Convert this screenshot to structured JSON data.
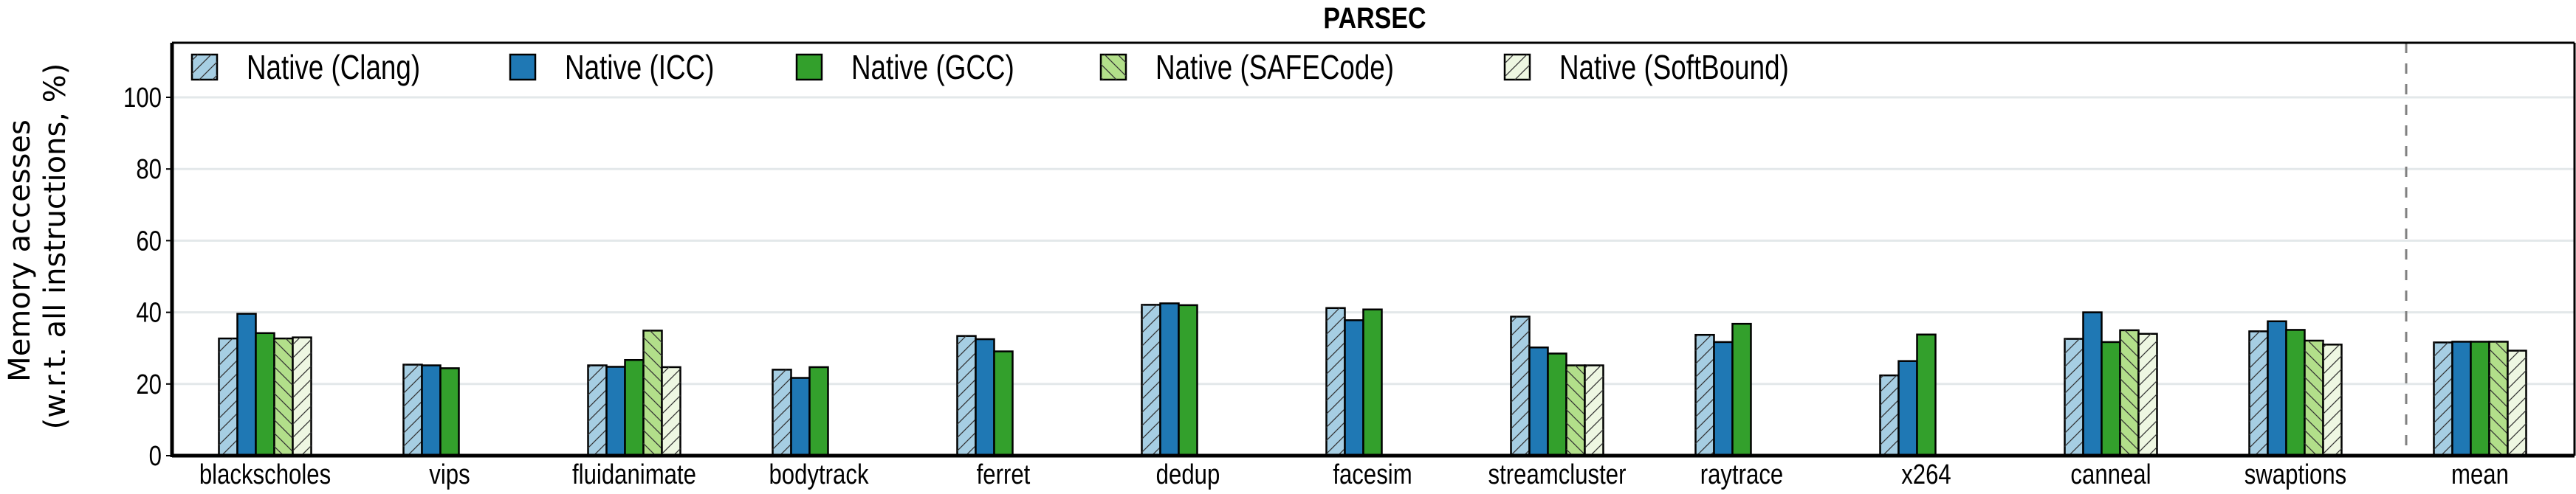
{
  "chart_data": {
    "type": "bar",
    "title": "PARSEC",
    "xlabel": "",
    "ylabel": [
      "Memory accesses",
      "(w.r.t. all instructions, %)"
    ],
    "ylim": [
      0,
      115
    ],
    "yticks": [
      0,
      20,
      40,
      60,
      80,
      100
    ],
    "grid": true,
    "legend_placement": "top-left",
    "categories": [
      "blackscholes",
      "vips",
      "fluidanimate",
      "bodytrack",
      "ferret",
      "dedup",
      "facesim",
      "streamcluster",
      "raytrace",
      "x264",
      "canneal",
      "swaptions",
      "mean"
    ],
    "separator_before": "mean",
    "series": [
      {
        "name": "Native (Clang)",
        "color": "#a6cee3",
        "hatch": "/",
        "values": [
          32.7,
          25.4,
          25.2,
          24.0,
          33.4,
          42.1,
          41.2,
          38.8,
          33.7,
          22.4,
          32.6,
          34.7,
          31.6
        ]
      },
      {
        "name": "Native (ICC)",
        "color": "#1f78b4",
        "hatch": "",
        "values": [
          39.6,
          25.2,
          24.8,
          21.7,
          32.5,
          42.5,
          37.8,
          30.2,
          31.7,
          26.4,
          40.0,
          37.5,
          31.8
        ]
      },
      {
        "name": "Native (GCC)",
        "color": "#33a02c",
        "hatch": "",
        "values": [
          34.2,
          24.4,
          26.7,
          24.7,
          29.1,
          42.0,
          40.8,
          28.5,
          36.8,
          33.8,
          31.7,
          35.1,
          31.8
        ]
      },
      {
        "name": "Native (SAFECode)",
        "color": "#b2df8a",
        "hatch": "\\",
        "values": [
          32.7,
          null,
          34.9,
          null,
          null,
          null,
          null,
          25.2,
          null,
          null,
          35.0,
          32.1,
          31.8
        ]
      },
      {
        "name": "Native (SoftBound)",
        "color": "#eef7e2",
        "hatch": "/",
        "values": [
          33.0,
          null,
          24.7,
          null,
          null,
          null,
          null,
          25.2,
          null,
          null,
          34.0,
          31.0,
          29.3
        ]
      }
    ]
  }
}
